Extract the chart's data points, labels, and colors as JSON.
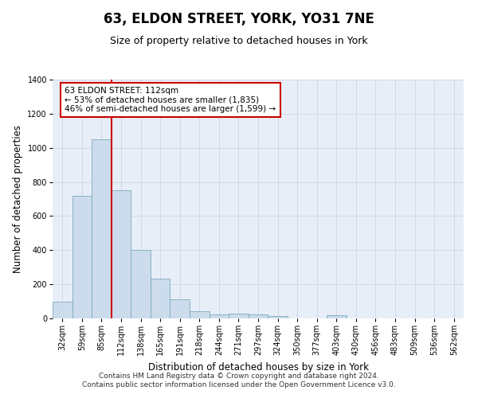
{
  "title": "63, ELDON STREET, YORK, YO31 7NE",
  "subtitle": "Size of property relative to detached houses in York",
  "xlabel": "Distribution of detached houses by size in York",
  "ylabel": "Number of detached properties",
  "categories": [
    "32sqm",
    "59sqm",
    "85sqm",
    "112sqm",
    "138sqm",
    "165sqm",
    "191sqm",
    "218sqm",
    "244sqm",
    "271sqm",
    "297sqm",
    "324sqm",
    "350sqm",
    "377sqm",
    "403sqm",
    "430sqm",
    "456sqm",
    "483sqm",
    "509sqm",
    "536sqm",
    "562sqm"
  ],
  "values": [
    100,
    720,
    1050,
    750,
    400,
    235,
    110,
    40,
    25,
    30,
    25,
    15,
    0,
    0,
    20,
    0,
    0,
    0,
    0,
    0,
    0
  ],
  "bar_color": "#ccdcec",
  "bar_edge_color": "#7aaabb",
  "property_line_index": 3,
  "property_line_color": "#cc0000",
  "annotation_text": "63 ELDON STREET: 112sqm\n← 53% of detached houses are smaller (1,835)\n46% of semi-detached houses are larger (1,599) →",
  "annotation_box_facecolor": "#ffffff",
  "annotation_box_edgecolor": "#cc0000",
  "ylim": [
    0,
    1400
  ],
  "yticks": [
    0,
    200,
    400,
    600,
    800,
    1000,
    1200,
    1400
  ],
  "footer_line1": "Contains HM Land Registry data © Crown copyright and database right 2024.",
  "footer_line2": "Contains public sector information licensed under the Open Government Licence v3.0.",
  "plot_bg_color": "#e8eef8",
  "grid_color": "#c8d0e0",
  "title_fontsize": 12,
  "subtitle_fontsize": 9,
  "axis_label_fontsize": 8.5,
  "tick_fontsize": 7,
  "annotation_fontsize": 7.5,
  "footer_fontsize": 6.5
}
